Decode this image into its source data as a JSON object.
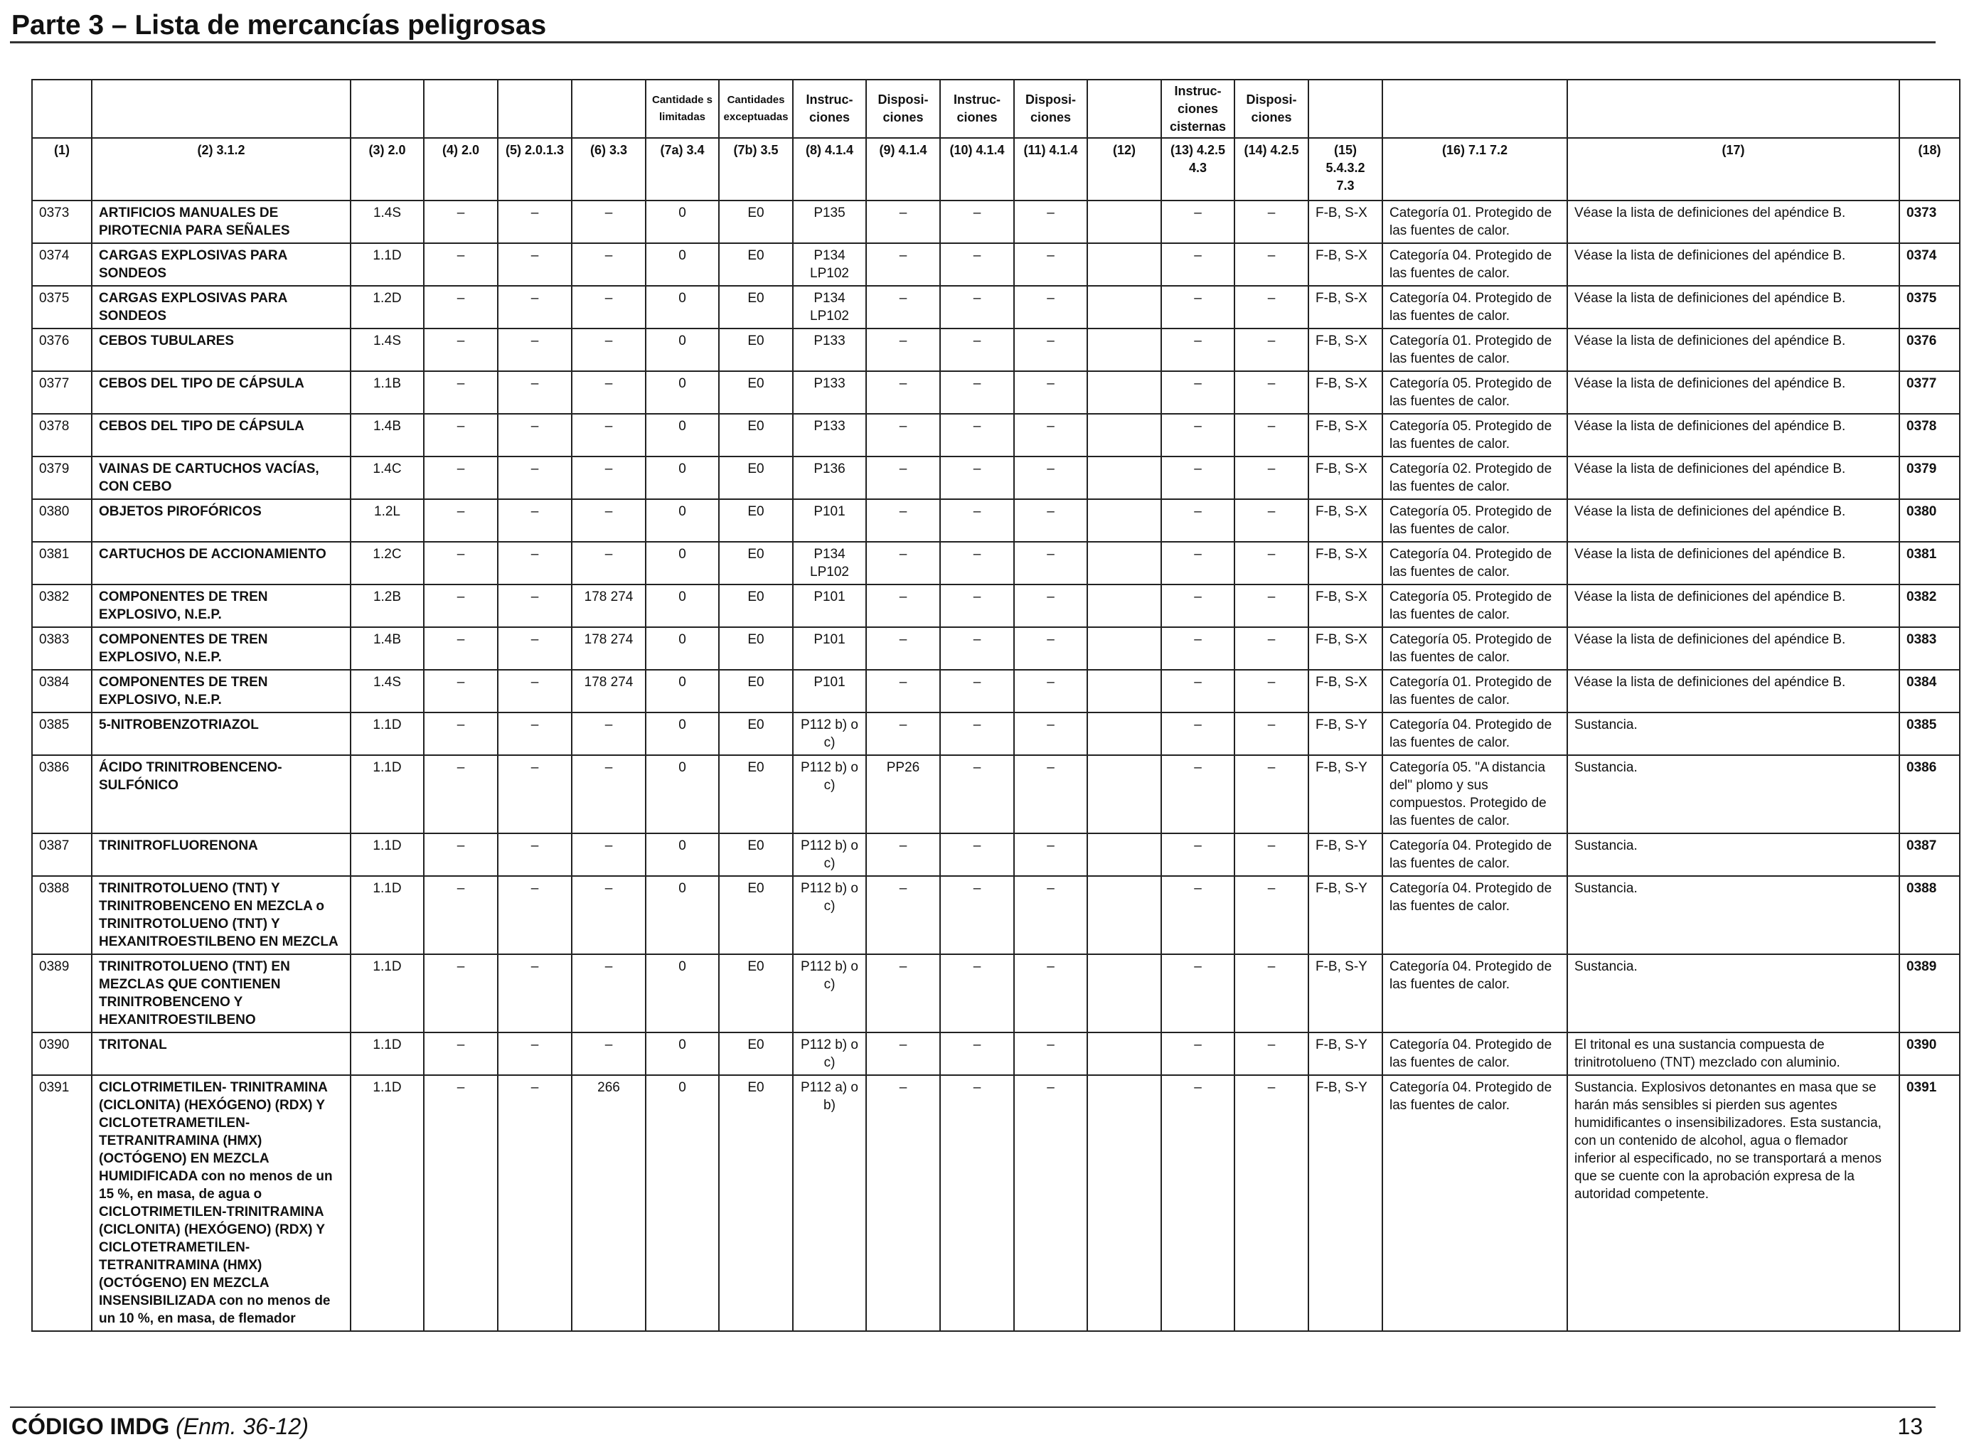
{
  "header": {
    "title": "Parte 3 – Lista de mercancías peligrosas"
  },
  "table": {
    "head1": [
      "",
      "",
      "",
      "",
      "",
      "",
      "Cantidade s limitadas",
      "Cantidades exceptuadas",
      "Instruc- ciones",
      "Disposi- ciones",
      "Instruc- ciones",
      "Disposi- ciones",
      "",
      "Instruc- ciones cisternas",
      "Disposi- ciones",
      "",
      "",
      "",
      ""
    ],
    "head2": [
      "(1)",
      "(2) 3.1.2",
      "(3) 2.0",
      "(4) 2.0",
      "(5) 2.0.1.3",
      "(6) 3.3",
      "(7a) 3.4",
      "(7b) 3.5",
      "(8) 4.1.4",
      "(9) 4.1.4",
      "(10) 4.1.4",
      "(11) 4.1.4",
      "(12)",
      "(13) 4.2.5 4.3",
      "(14) 4.2.5",
      "(15) 5.4.3.2 7.3",
      "(16) 7.1 7.2",
      "(17)",
      "(18)"
    ],
    "rows": [
      [
        "0373",
        "ARTIFICIOS MANUALES DE PIROTECNIA PARA SEÑALES",
        "1.4S",
        "–",
        "–",
        "–",
        "0",
        "E0",
        "P135",
        "–",
        "–",
        "–",
        "",
        "–",
        "–",
        "F-B, S-X",
        "Categoría 01. Protegido de las fuentes de calor.",
        "Véase la lista de definiciones del apéndice B.",
        "0373"
      ],
      [
        "0374",
        "CARGAS EXPLOSIVAS PARA SONDEOS",
        "1.1D",
        "–",
        "–",
        "–",
        "0",
        "E0",
        "P134 LP102",
        "–",
        "–",
        "–",
        "",
        "–",
        "–",
        "F-B, S-X",
        "Categoría 04. Protegido de las fuentes de calor.",
        "Véase la lista de definiciones del apéndice B.",
        "0374"
      ],
      [
        "0375",
        "CARGAS EXPLOSIVAS PARA SONDEOS",
        "1.2D",
        "–",
        "–",
        "–",
        "0",
        "E0",
        "P134 LP102",
        "–",
        "–",
        "–",
        "",
        "–",
        "–",
        "F-B, S-X",
        "Categoría 04. Protegido de las fuentes de calor.",
        "Véase la lista de definiciones del apéndice B.",
        "0375"
      ],
      [
        "0376",
        "CEBOS TUBULARES",
        "1.4S",
        "–",
        "–",
        "–",
        "0",
        "E0",
        "P133",
        "–",
        "–",
        "–",
        "",
        "–",
        "–",
        "F-B, S-X",
        "Categoría 01. Protegido de las fuentes de calor.",
        "Véase la lista de definiciones del apéndice B.",
        "0376"
      ],
      [
        "0377",
        "CEBOS DEL TIPO DE CÁPSULA",
        "1.1B",
        "–",
        "–",
        "–",
        "0",
        "E0",
        "P133",
        "–",
        "–",
        "–",
        "",
        "–",
        "–",
        "F-B, S-X",
        "Categoría 05. Protegido de las fuentes de calor.",
        "Véase la lista de definiciones del apéndice B.",
        "0377"
      ],
      [
        "0378",
        "CEBOS DEL TIPO DE CÁPSULA",
        "1.4B",
        "–",
        "–",
        "–",
        "0",
        "E0",
        "P133",
        "–",
        "–",
        "–",
        "",
        "–",
        "–",
        "F-B, S-X",
        "Categoría 05. Protegido de las fuentes de calor.",
        "Véase la lista de definiciones del apéndice B.",
        "0378"
      ],
      [
        "0379",
        "VAINAS DE CARTUCHOS VACÍAS, CON CEBO",
        "1.4C",
        "–",
        "–",
        "–",
        "0",
        "E0",
        "P136",
        "–",
        "–",
        "–",
        "",
        "–",
        "–",
        "F-B, S-X",
        "Categoría 02. Protegido de las fuentes de calor.",
        "Véase la lista de definiciones del apéndice B.",
        "0379"
      ],
      [
        "0380",
        "OBJETOS PIROFÓRICOS",
        "1.2L",
        "–",
        "–",
        "–",
        "0",
        "E0",
        "P101",
        "–",
        "–",
        "–",
        "",
        "–",
        "–",
        "F-B, S-X",
        "Categoría 05. Protegido de las fuentes de calor.",
        "Véase la lista de definiciones del apéndice B.",
        "0380"
      ],
      [
        "0381",
        "CARTUCHOS DE ACCIONAMIENTO",
        "1.2C",
        "–",
        "–",
        "–",
        "0",
        "E0",
        "P134 LP102",
        "–",
        "–",
        "–",
        "",
        "–",
        "–",
        "F-B, S-X",
        "Categoría 04. Protegido de las fuentes de calor.",
        "Véase la lista de definiciones del apéndice B.",
        "0381"
      ],
      [
        "0382",
        "COMPONENTES DE TREN EXPLOSIVO, N.E.P.",
        "1.2B",
        "–",
        "–",
        "178 274",
        "0",
        "E0",
        "P101",
        "–",
        "–",
        "–",
        "",
        "–",
        "–",
        "F-B, S-X",
        "Categoría 05. Protegido de las fuentes de calor.",
        "Véase la lista de definiciones del apéndice B.",
        "0382"
      ],
      [
        "0383",
        "COMPONENTES DE TREN EXPLOSIVO, N.E.P.",
        "1.4B",
        "–",
        "–",
        "178 274",
        "0",
        "E0",
        "P101",
        "–",
        "–",
        "–",
        "",
        "–",
        "–",
        "F-B, S-X",
        "Categoría 05. Protegido de las fuentes de calor.",
        "Véase la lista de definiciones del apéndice B.",
        "0383"
      ],
      [
        "0384",
        "COMPONENTES DE TREN EXPLOSIVO, N.E.P.",
        "1.4S",
        "–",
        "–",
        "178 274",
        "0",
        "E0",
        "P101",
        "–",
        "–",
        "–",
        "",
        "–",
        "–",
        "F-B, S-X",
        "Categoría 01. Protegido de las fuentes de calor.",
        "Véase la lista de definiciones del apéndice B.",
        "0384"
      ],
      [
        "0385",
        "5-NITROBENZOTRIAZOL",
        "1.1D",
        "–",
        "–",
        "–",
        "0",
        "E0",
        "P112 b) o c)",
        "–",
        "–",
        "–",
        "",
        "–",
        "–",
        "F-B, S-Y",
        "Categoría 04. Protegido de las fuentes de calor.",
        "Sustancia.",
        "0385"
      ],
      [
        "0386",
        "ÁCIDO TRINITROBENCENO- SULFÓNICO",
        "1.1D",
        "–",
        "–",
        "–",
        "0",
        "E0",
        "P112 b) o c)",
        "PP26",
        "–",
        "–",
        "",
        "–",
        "–",
        "F-B, S-Y",
        "Categoría 05. \"A distancia del\" plomo y sus compuestos. Protegido de las fuentes de calor.",
        "Sustancia.",
        "0386"
      ],
      [
        "0387",
        "TRINITROFLUORENONA",
        "1.1D",
        "–",
        "–",
        "–",
        "0",
        "E0",
        "P112 b) o c)",
        "–",
        "–",
        "–",
        "",
        "–",
        "–",
        "F-B, S-Y",
        "Categoría 04. Protegido de las fuentes de calor.",
        "Sustancia.",
        "0387"
      ],
      [
        "0388",
        "TRINITROTOLUENO (TNT) Y TRINITROBENCENO EN MEZCLA o TRINITROTOLUENO (TNT) Y HEXANITROESTILBENO EN MEZCLA",
        "1.1D",
        "–",
        "–",
        "–",
        "0",
        "E0",
        "P112 b) o c)",
        "–",
        "–",
        "–",
        "",
        "–",
        "–",
        "F-B, S-Y",
        "Categoría 04. Protegido de las fuentes de calor.",
        "Sustancia.",
        "0388"
      ],
      [
        "0389",
        "TRINITROTOLUENO (TNT) EN MEZCLAS QUE CONTIENEN TRINITROBENCENO Y HEXANITROESTILBENO",
        "1.1D",
        "–",
        "–",
        "–",
        "0",
        "E0",
        "P112 b) o c)",
        "–",
        "–",
        "–",
        "",
        "–",
        "–",
        "F-B, S-Y",
        "Categoría 04. Protegido de las fuentes de calor.",
        "Sustancia.",
        "0389"
      ],
      [
        "0390",
        "TRITONAL",
        "1.1D",
        "–",
        "–",
        "–",
        "0",
        "E0",
        "P112 b) o c)",
        "–",
        "–",
        "–",
        "",
        "–",
        "–",
        "F-B, S-Y",
        "Categoría 04. Protegido de las fuentes de calor.",
        "El tritonal es una sustancia compuesta de trinitrotolueno (TNT) mezclado con aluminio.",
        "0390"
      ],
      [
        "0391",
        "CICLOTRIMETILEN- TRINITRAMINA (CICLONITA) (HEXÓGENO) (RDX) Y CICLOTETRAMETILEN- TETRANITRAMINA (HMX) (OCTÓGENO) EN MEZCLA HUMIDIFICADA con no menos de un 15 %, en masa, de agua o CICLOTRIMETILEN-TRINITRAMINA (CICLONITA) (HEXÓGENO) (RDX) Y CICLOTETRAMETILEN- TETRANITRAMINA (HMX) (OCTÓGENO) EN MEZCLA INSENSIBILIZADA con no menos de un 10 %, en masa, de flemador",
        "1.1D",
        "–",
        "–",
        "266",
        "0",
        "E0",
        "P112 a) o b)",
        "–",
        "–",
        "–",
        "",
        "–",
        "–",
        "F-B, S-Y",
        "Categoría 04. Protegido de las fuentes de calor.",
        "Sustancia. Explosivos detonantes en masa que se harán más sensibles si pierden sus agentes humidificantes o insensibilizadores. Esta sustancia, con un contenido de alcohol, agua o flemador inferior al especificado, no se transportará a menos que se cuente con la aprobación expresa de la autoridad competente.",
        "0391"
      ]
    ]
  },
  "footer": {
    "code": "CÓDIGO IMDG",
    "amendment": "(Enm. 36-12)",
    "page_number": "13"
  }
}
